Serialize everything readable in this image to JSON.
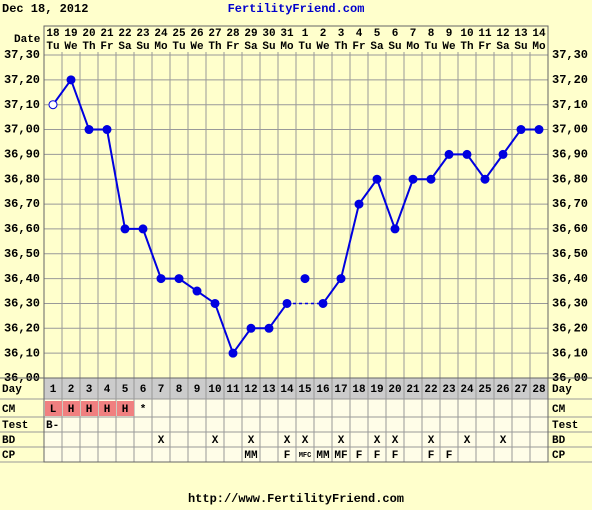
{
  "header": {
    "date": "Dec 18, 2012",
    "site": "FertilityFriend.com"
  },
  "chart_data": {
    "type": "line",
    "x_label": "Date",
    "categories": [
      "18",
      "19",
      "20",
      "21",
      "22",
      "23",
      "24",
      "25",
      "26",
      "27",
      "28",
      "29",
      "30",
      "31",
      "1",
      "2",
      "3",
      "4",
      "5",
      "6",
      "7",
      "8",
      "9",
      "10",
      "11",
      "12",
      "13",
      "14"
    ],
    "weekdays": [
      "Tu",
      "We",
      "Th",
      "Fr",
      "Sa",
      "Su",
      "Mo",
      "Tu",
      "We",
      "Th",
      "Fr",
      "Sa",
      "Su",
      "Mo",
      "Tu",
      "We",
      "Th",
      "Fr",
      "Sa",
      "Su",
      "Mo",
      "Tu",
      "We",
      "Th",
      "Fr",
      "Sa",
      "Su",
      "Mo"
    ],
    "series": [
      {
        "color": "#0000e0",
        "values": [
          37.1,
          37.2,
          37.0,
          37.0,
          36.6,
          36.6,
          36.4,
          36.4,
          36.35,
          36.3,
          36.1,
          36.2,
          36.2,
          36.3,
          null,
          36.3,
          36.4,
          36.7,
          36.8,
          36.6,
          36.8,
          36.8,
          36.9,
          36.9,
          36.8,
          36.9,
          37.0,
          37.0
        ],
        "markers": [
          "open",
          "filled",
          "filled",
          "filled",
          "filled",
          "filled",
          "filled",
          "filled",
          "filled",
          "filled",
          "filled",
          "filled",
          "filled",
          "filled",
          "filled",
          "filled",
          "filled",
          "filled",
          "filled",
          "filled",
          "filled",
          "filled",
          "filled",
          "filled",
          "filled",
          "filled",
          "filled",
          "filled"
        ]
      }
    ],
    "discarded": [
      null,
      null,
      null,
      null,
      null,
      null,
      null,
      null,
      null,
      null,
      null,
      null,
      null,
      null,
      36.4,
      null,
      null,
      null,
      null,
      null,
      null,
      null,
      null,
      null,
      null,
      null,
      null,
      null
    ],
    "ylim": [
      36.0,
      37.3
    ],
    "yticks": [
      {
        "value": 36.0,
        "label": "36,00"
      },
      {
        "value": 36.1,
        "label": "36,10"
      },
      {
        "value": 36.2,
        "label": "36,20"
      },
      {
        "value": 36.3,
        "label": "36,30"
      },
      {
        "value": 36.4,
        "label": "36,40"
      },
      {
        "value": 36.5,
        "label": "36,50"
      },
      {
        "value": 36.6,
        "label": "36,60"
      },
      {
        "value": 36.7,
        "label": "36,70"
      },
      {
        "value": 36.8,
        "label": "36,80"
      },
      {
        "value": 36.9,
        "label": "36,90"
      },
      {
        "value": 37.0,
        "label": "37,00"
      },
      {
        "value": 37.1,
        "label": "37,10"
      },
      {
        "value": 37.2,
        "label": "37,20"
      },
      {
        "value": 37.3,
        "label": "37,30"
      }
    ],
    "grid": true
  },
  "rows": {
    "labels": {
      "day": "Day",
      "cm": "CM",
      "test": "Test",
      "bd": "BD",
      "cp": "CP"
    },
    "day": [
      1,
      2,
      3,
      4,
      5,
      6,
      7,
      8,
      9,
      10,
      11,
      12,
      13,
      14,
      15,
      16,
      17,
      18,
      19,
      20,
      21,
      22,
      23,
      24,
      25,
      26,
      27,
      28
    ],
    "cm": [
      "L",
      "H",
      "H",
      "H",
      "H",
      "*",
      null,
      null,
      null,
      null,
      null,
      null,
      null,
      null,
      null,
      null,
      null,
      null,
      null,
      null,
      null,
      null,
      null,
      null,
      null,
      null,
      null,
      null
    ],
    "cm_colors": [
      "#f08080",
      "#f08080",
      "#f08080",
      "#f08080",
      "#f08080",
      null,
      null,
      null,
      null,
      null,
      null,
      null,
      null,
      null,
      null,
      null,
      null,
      null,
      null,
      null,
      null,
      null,
      null,
      null,
      null,
      null,
      null,
      null
    ],
    "test": [
      "B-",
      null,
      null,
      null,
      null,
      null,
      null,
      null,
      null,
      null,
      null,
      null,
      null,
      null,
      null,
      null,
      null,
      null,
      null,
      null,
      null,
      null,
      null,
      null,
      null,
      null,
      null,
      null
    ],
    "bd": [
      null,
      null,
      null,
      null,
      null,
      null,
      "X",
      null,
      null,
      "X",
      null,
      "X",
      null,
      "X",
      "X",
      null,
      "X",
      null,
      "X",
      "X",
      null,
      "X",
      null,
      "X",
      null,
      "X",
      null,
      null
    ],
    "cp": [
      null,
      null,
      null,
      null,
      null,
      null,
      null,
      null,
      null,
      null,
      null,
      "MM",
      null,
      "F",
      "MFC",
      "MM",
      "MF",
      "F",
      "F",
      "F",
      null,
      "F",
      "F",
      null,
      null,
      null,
      null,
      null
    ]
  },
  "footer": "http://www.FertilityFriend.com"
}
